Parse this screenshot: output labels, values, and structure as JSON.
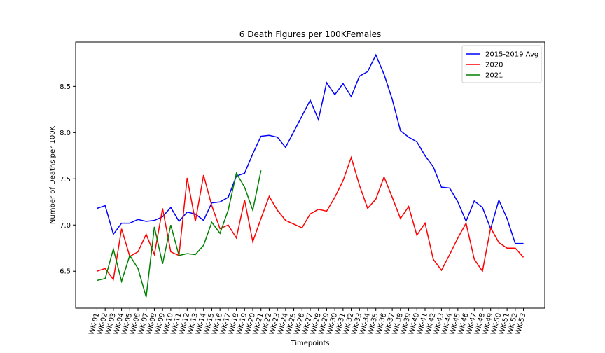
{
  "chart_data": {
    "type": "line",
    "title": "6 Death Figures per 100KFemales",
    "x_label": "Timepoints",
    "y_label": "Number of Deaths per 100K",
    "categories": [
      "WK-01",
      "WK-02",
      "WK-03",
      "WK-04",
      "WK-05",
      "WK-06",
      "WK-07",
      "WK-08",
      "WK-09",
      "WK-10",
      "WK-11",
      "WK-12",
      "WK-13",
      "WK-14",
      "WK-15",
      "WK-16",
      "WK-17",
      "WK-18",
      "WK-19",
      "WK-20",
      "WK-21",
      "WK-22",
      "WK-23",
      "WK-24",
      "WK-25",
      "WK-26",
      "WK-27",
      "WK-28",
      "WK-29",
      "WK-30",
      "WK-31",
      "WK-32",
      "WK-33",
      "WK-34",
      "WK-35",
      "WK-36",
      "WK-37",
      "WK-38",
      "WK-39",
      "WK-40",
      "WK-41",
      "WK-42",
      "WK-43",
      "WK-44",
      "WK-45",
      "WK-46",
      "WK-47",
      "WK-48",
      "WK-49",
      "WK-50",
      "WK-51",
      "WK-52",
      "WK-53"
    ],
    "series": [
      {
        "name": "2015-2019 Avg",
        "color": "#0000ff",
        "values": [
          7.18,
          7.21,
          6.9,
          7.02,
          7.02,
          7.06,
          7.04,
          7.05,
          7.09,
          7.19,
          7.04,
          7.14,
          7.12,
          7.05,
          7.24,
          7.25,
          7.3,
          7.53,
          7.56,
          7.77,
          7.96,
          7.97,
          7.95,
          7.84,
          8.01,
          8.18,
          8.35,
          8.14,
          8.54,
          8.41,
          8.53,
          8.39,
          8.61,
          8.66,
          8.84,
          8.63,
          8.36,
          8.02,
          7.95,
          7.9,
          7.75,
          7.63,
          7.41,
          7.4,
          7.25,
          7.04,
          7.26,
          7.19,
          6.96,
          7.27,
          7.07,
          6.8,
          6.8
        ]
      },
      {
        "name": "2020",
        "color": "#ff0000",
        "values": [
          6.5,
          6.53,
          6.41,
          6.96,
          6.66,
          6.71,
          6.9,
          6.68,
          7.18,
          6.71,
          6.67,
          7.51,
          7.04,
          7.54,
          7.21,
          6.96,
          7.0,
          6.86,
          7.27,
          6.82,
          7.07,
          7.31,
          7.16,
          7.05,
          7.01,
          6.97,
          7.12,
          7.17,
          7.15,
          7.3,
          7.48,
          7.73,
          7.43,
          7.18,
          7.28,
          7.52,
          7.3,
          7.07,
          7.2,
          6.89,
          7.02,
          6.63,
          6.51,
          6.68,
          6.86,
          7.02,
          6.63,
          6.5,
          6.97,
          6.81,
          6.75,
          6.75,
          6.65
        ]
      },
      {
        "name": "2021",
        "color": "#008000",
        "values": [
          6.4,
          6.42,
          6.74,
          6.39,
          6.67,
          6.53,
          6.22,
          6.98,
          6.58,
          7.0,
          6.67,
          6.69,
          6.68,
          6.78,
          7.03,
          6.91,
          7.16,
          7.56,
          7.41,
          7.16,
          7.59,
          null,
          null,
          null,
          null,
          null,
          null,
          null,
          null,
          null,
          null,
          null,
          null,
          null,
          null,
          null,
          null,
          null,
          null,
          null,
          null,
          null,
          null,
          null,
          null,
          null,
          null,
          null,
          null,
          null,
          null,
          null,
          null
        ]
      }
    ],
    "ylim": [
      6.1,
      8.98
    ],
    "yticks": [
      6.5,
      {
        "value": 7,
        "label": "7.0"
      },
      7.5,
      {
        "value": 8,
        "label": "8.0"
      },
      8.5
    ],
    "grid": false,
    "legend": "upper right"
  }
}
